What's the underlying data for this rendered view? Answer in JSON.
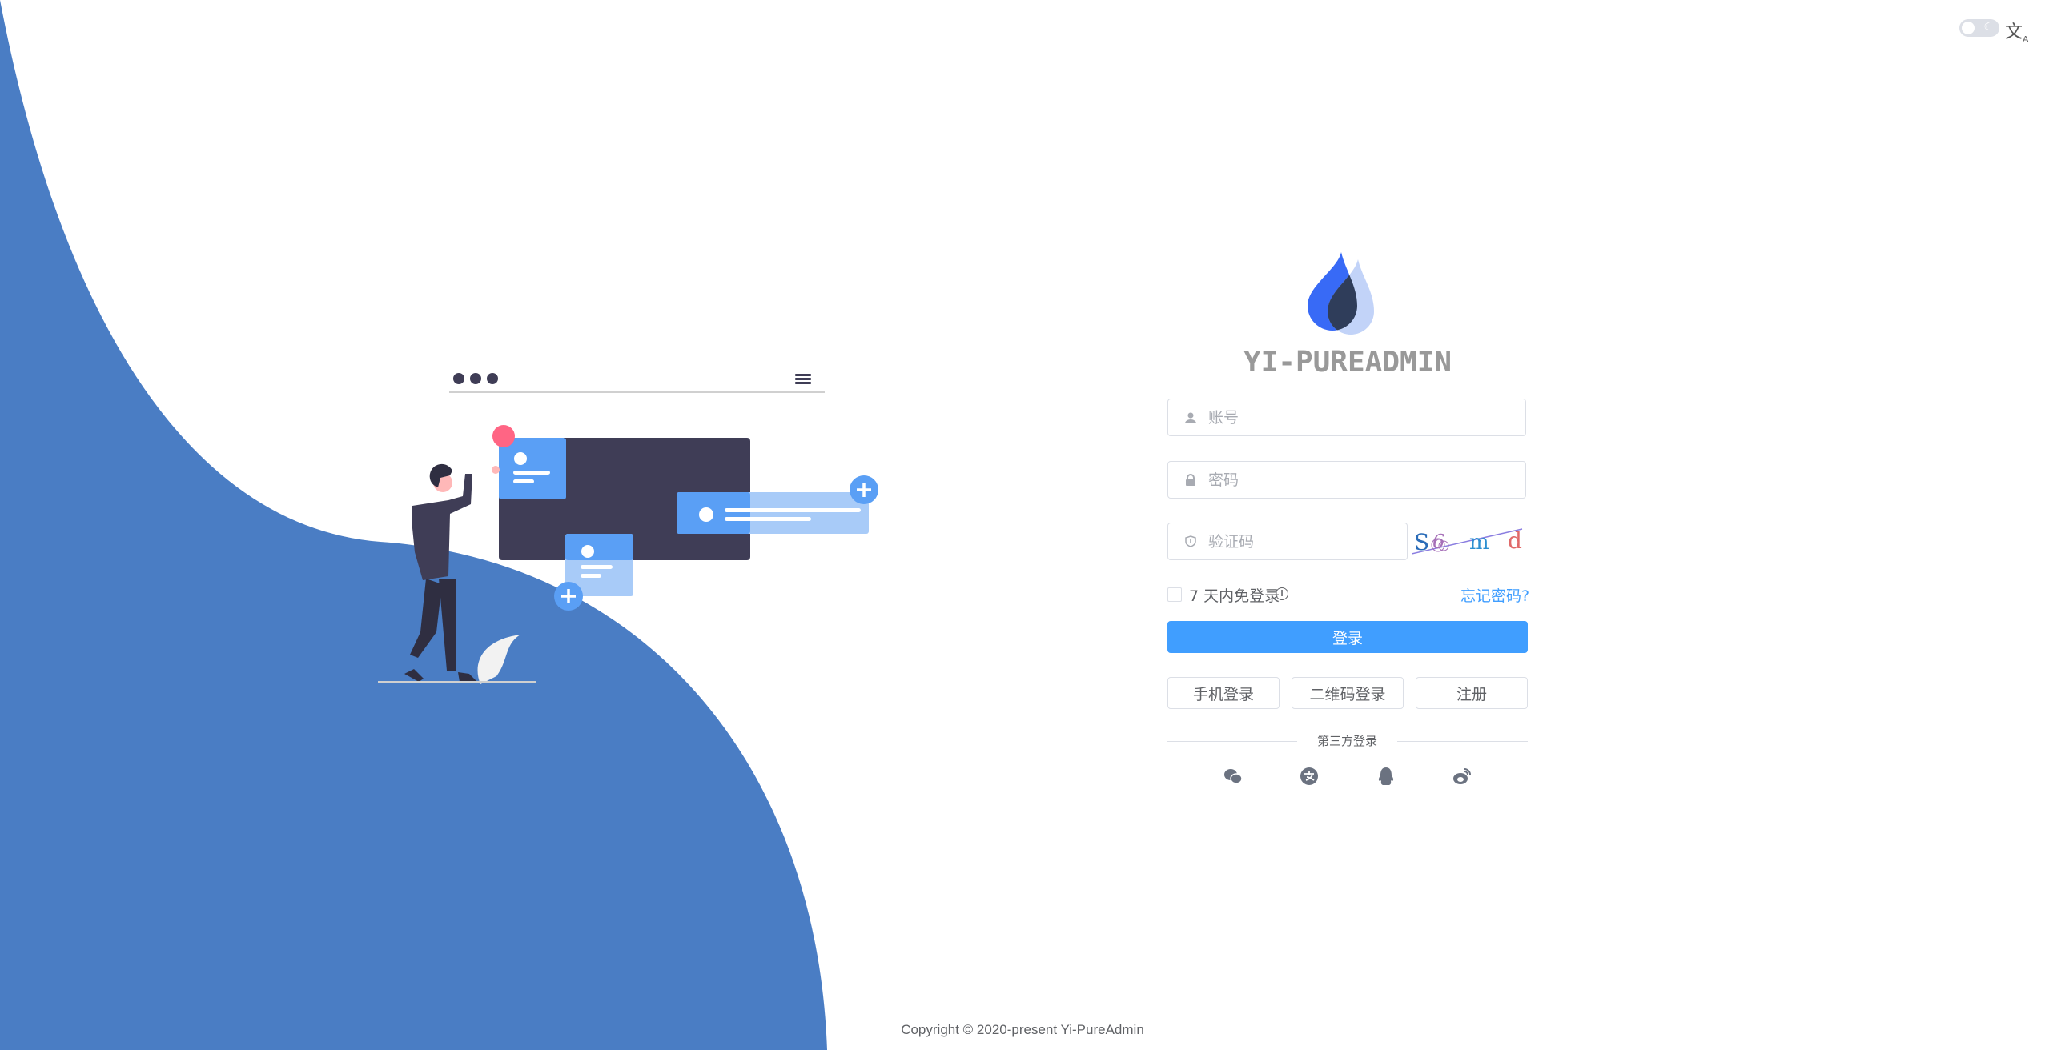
{
  "topbar": {
    "theme_toggle_icon": "moon-icon",
    "language_icon": "translate-icon"
  },
  "brand": {
    "title": "YI-PUREADMIN",
    "logo_icon": "droplets-logo"
  },
  "form": {
    "username_placeholder": "账号",
    "password_placeholder": "密码",
    "captcha_placeholder": "验证码",
    "captcha_chars": [
      "S",
      "6",
      "m",
      "d"
    ],
    "remember_label": "7 天内免登录",
    "forgot_label": "忘记密码?",
    "login_label": "登录",
    "alt_buttons": [
      "手机登录",
      "二维码登录",
      "注册"
    ],
    "third_party_label": "第三方登录",
    "third_party_icons": [
      "wechat-icon",
      "alipay-icon",
      "qq-icon",
      "weibo-icon"
    ]
  },
  "colors": {
    "primary": "#409eff",
    "illustration_blue": "#4a7dc4",
    "title": "#999999"
  },
  "footer": {
    "copyright": "Copyright © 2020-present Yi-PureAdmin"
  }
}
